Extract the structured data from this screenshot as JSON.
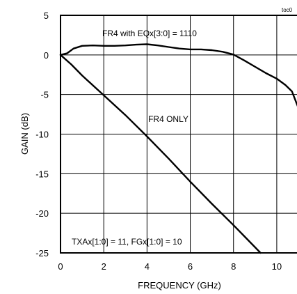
{
  "chart_data": {
    "type": "line",
    "title": "",
    "corner_label": "toc0",
    "xlabel": "FREQUENCY (GHz)",
    "ylabel": "GAIN (dB)",
    "xlim": [
      0,
      11
    ],
    "ylim": [
      -25,
      5
    ],
    "x_ticks": [
      0,
      2,
      4,
      6,
      8,
      10
    ],
    "x_tick_labels": [
      "0",
      "2",
      "4",
      "6",
      "8",
      "10"
    ],
    "y_ticks": [
      5,
      0,
      -5,
      -10,
      -15,
      -20,
      -25
    ],
    "y_tick_labels": [
      "5",
      "0",
      "-5",
      "-10",
      "-15",
      "-20",
      "-25"
    ],
    "grid": true,
    "series": [
      {
        "name": "FR4 with EQx[3:0] = 1110",
        "points": [
          [
            0,
            0
          ],
          [
            0.3,
            0.2
          ],
          [
            0.6,
            0.8
          ],
          [
            1,
            1.15
          ],
          [
            1.5,
            1.2
          ],
          [
            2,
            1.15
          ],
          [
            2.5,
            1.15
          ],
          [
            3,
            1.2
          ],
          [
            3.5,
            1.3
          ],
          [
            4,
            1.35
          ],
          [
            4.5,
            1.2
          ],
          [
            5,
            1.0
          ],
          [
            5.5,
            0.8
          ],
          [
            6,
            0.7
          ],
          [
            6.5,
            0.7
          ],
          [
            7,
            0.6
          ],
          [
            7.5,
            0.4
          ],
          [
            8,
            0.05
          ],
          [
            8.5,
            -0.7
          ],
          [
            9,
            -1.5
          ],
          [
            9.5,
            -2.3
          ],
          [
            10,
            -3.0
          ],
          [
            10.4,
            -3.8
          ],
          [
            10.7,
            -4.6
          ],
          [
            11,
            -6.7
          ]
        ]
      },
      {
        "name": "FR4 ONLY",
        "points": [
          [
            0,
            0
          ],
          [
            0.5,
            -1.2
          ],
          [
            1,
            -2.6
          ],
          [
            2,
            -5.1
          ],
          [
            3,
            -7.6
          ],
          [
            4,
            -10.3
          ],
          [
            5,
            -13.1
          ],
          [
            6,
            -16.0
          ],
          [
            7,
            -18.8
          ],
          [
            8,
            -21.5
          ],
          [
            8.5,
            -22.9
          ],
          [
            9.25,
            -25
          ]
        ]
      }
    ],
    "annotations": {
      "top_curve": "FR4 with EQx[3:0] = 1110",
      "bottom_curve": "FR4 ONLY",
      "settings": "TXAx[1:0] = 11, FGx[1:0] = 10"
    }
  }
}
